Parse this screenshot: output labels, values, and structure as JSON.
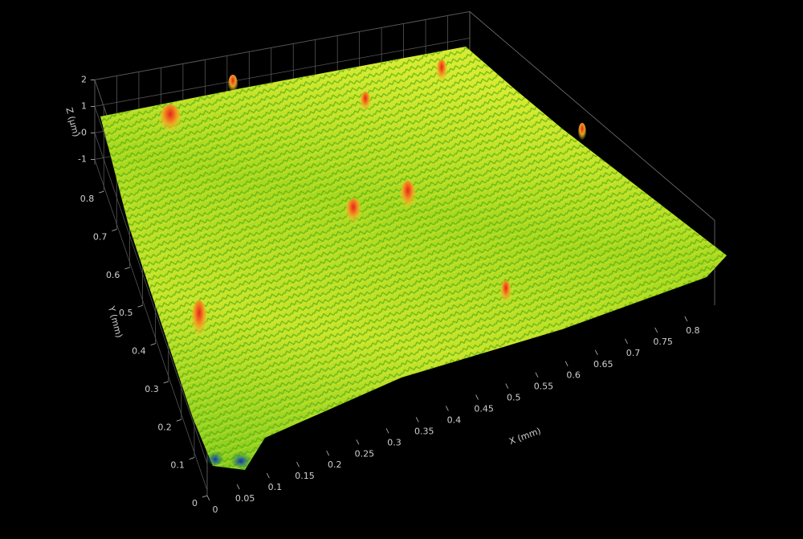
{
  "chart_data": {
    "type": "surface",
    "xlabel": "X (mm)",
    "ylabel": "Y (mm)",
    "zlabel": "Z (µm)",
    "xlim": [
      0,
      0.85
    ],
    "ylim": [
      0,
      0.87
    ],
    "zlim": [
      -1.2,
      2
    ],
    "xticks": [
      0,
      0.05,
      0.1,
      0.15,
      0.2,
      0.25,
      0.3,
      0.35,
      0.4,
      0.45,
      0.5,
      0.55,
      0.6,
      0.65,
      0.7,
      0.75,
      0.8
    ],
    "yticks": [
      0,
      0.1,
      0.2,
      0.3,
      0.4,
      0.5,
      0.6,
      0.7,
      0.8
    ],
    "zticks": [
      -1,
      {
        "value": 0,
        "label": "-0"
      },
      1,
      2
    ],
    "grid": true
  }
}
